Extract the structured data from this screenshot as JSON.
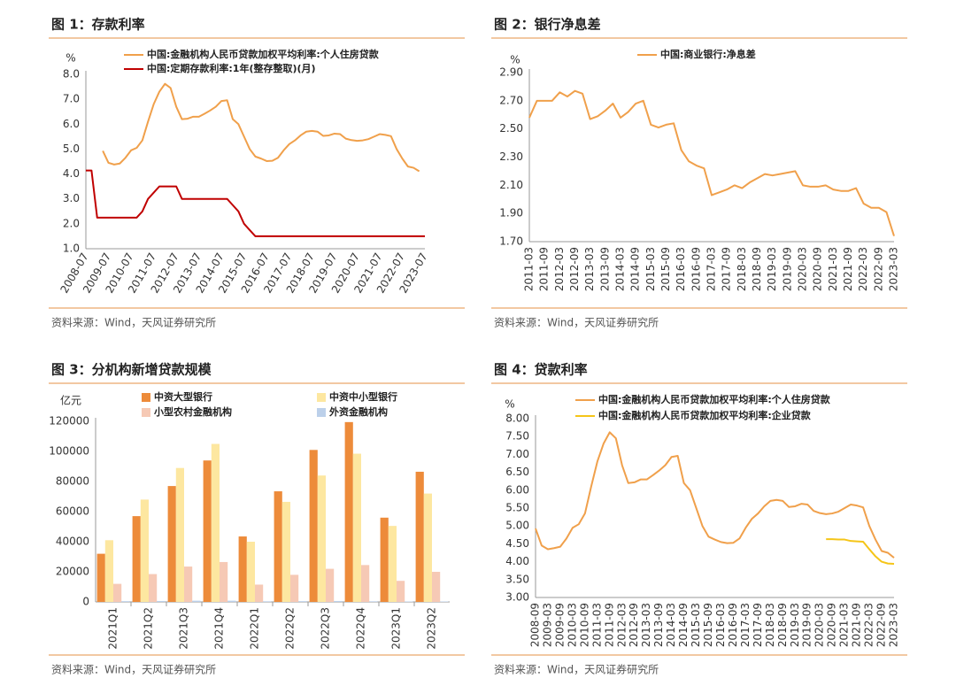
{
  "chart_data": [
    {
      "type": "line",
      "title": "图 1：存款利率",
      "source": "资料来源：Wind，天风证券研究所",
      "ylabel": "%",
      "categories": [
        "2008-07",
        null,
        null,
        null,
        "2009-07",
        null,
        null,
        null,
        "2010-07",
        null,
        null,
        null,
        "2011-07",
        null,
        null,
        null,
        "2012-07",
        null,
        null,
        null,
        "2013-07",
        null,
        null,
        null,
        "2014-07",
        null,
        null,
        null,
        "2015-07",
        null,
        null,
        null,
        "2016-07",
        null,
        null,
        null,
        "2017-07",
        null,
        null,
        null,
        "2018-07",
        null,
        null,
        null,
        "2019-07",
        null,
        null,
        null,
        "2020-07",
        null,
        null,
        null,
        "2021-07",
        null,
        null,
        null,
        "2022-07",
        null,
        null,
        null,
        "2023-07"
      ],
      "series": [
        {
          "name": "中国:金融机构人民币贷款加权平均利率:个人住房贷款",
          "color": "#f0a04b",
          "values": [
            null,
            null,
            null,
            4.93,
            4.45,
            4.38,
            4.42,
            4.65,
            4.95,
            5.05,
            5.35,
            6.1,
            6.8,
            7.3,
            7.62,
            7.45,
            6.7,
            6.2,
            6.22,
            6.3,
            6.3,
            6.42,
            6.55,
            6.7,
            6.93,
            6.96,
            6.2,
            6.0,
            5.5,
            5.0,
            4.7,
            4.62,
            4.52,
            4.53,
            4.65,
            4.95,
            5.2,
            5.35,
            5.55,
            5.7,
            5.73,
            5.7,
            5.53,
            5.55,
            5.62,
            5.6,
            5.42,
            5.36,
            5.33,
            5.35,
            5.4,
            5.5,
            5.6,
            5.57,
            5.52,
            5.0,
            4.62,
            4.3,
            4.25,
            4.11,
            null
          ]
        },
        {
          "name": "中国:定期存款利率:1年(整存整取)(月)",
          "color": "#c00000",
          "values": [
            4.14,
            4.14,
            2.25,
            2.25,
            2.25,
            2.25,
            2.25,
            2.25,
            2.25,
            2.25,
            2.5,
            3.0,
            3.25,
            3.5,
            3.5,
            3.5,
            3.5,
            3.0,
            3.0,
            3.0,
            3.0,
            3.0,
            3.0,
            3.0,
            3.0,
            3.0,
            2.75,
            2.5,
            2.0,
            1.75,
            1.5,
            1.5,
            1.5,
            1.5,
            1.5,
            1.5,
            1.5,
            1.5,
            1.5,
            1.5,
            1.5,
            1.5,
            1.5,
            1.5,
            1.5,
            1.5,
            1.5,
            1.5,
            1.5,
            1.5,
            1.5,
            1.5,
            1.5,
            1.5,
            1.5,
            1.5,
            1.5,
            1.5,
            1.5,
            1.5,
            1.5
          ]
        }
      ],
      "ylim": [
        1.0,
        8.0
      ],
      "yticks": [
        {
          "value": 1,
          "label": "1.0"
        },
        {
          "value": 2,
          "label": "2.0"
        },
        {
          "value": 3,
          "label": "3.0"
        },
        {
          "value": 4,
          "label": "4.0"
        },
        {
          "value": 5,
          "label": "5.0"
        },
        {
          "value": 6,
          "label": "6.0"
        },
        {
          "value": 7,
          "label": "7.0"
        },
        {
          "value": 8,
          "label": "8.0"
        }
      ]
    },
    {
      "type": "line",
      "title": "图 2：银行净息差",
      "source": "资料来源：Wind，天风证券研究所",
      "ylabel": "%",
      "categories": [
        "2011-03",
        null,
        "2011-09",
        null,
        "2012-03",
        null,
        "2012-09",
        null,
        "2013-03",
        null,
        "2013-09",
        null,
        "2014-03",
        null,
        "2014-09",
        null,
        "2015-03",
        null,
        "2015-09",
        null,
        "2016-03",
        null,
        "2016-09",
        null,
        "2017-03",
        null,
        "2017-09",
        null,
        "2018-03",
        null,
        "2018-09",
        null,
        "2019-03",
        null,
        "2019-09",
        null,
        "2020-03",
        null,
        "2020-09",
        null,
        "2021-03",
        null,
        "2021-09",
        null,
        "2022-03",
        null,
        "2022-09",
        null,
        "2023-03"
      ],
      "series": [
        {
          "name": "中国:商业银行:净息差",
          "color": "#f0a04b",
          "values": [
            2.58,
            2.7,
            2.7,
            2.7,
            2.76,
            2.73,
            2.77,
            2.75,
            2.57,
            2.59,
            2.63,
            2.68,
            2.58,
            2.62,
            2.68,
            2.7,
            2.53,
            2.51,
            2.53,
            2.54,
            2.35,
            2.27,
            2.24,
            2.22,
            2.03,
            2.05,
            2.07,
            2.1,
            2.08,
            2.12,
            2.15,
            2.18,
            2.17,
            2.18,
            2.19,
            2.2,
            2.1,
            2.09,
            2.09,
            2.1,
            2.07,
            2.06,
            2.06,
            2.08,
            1.97,
            1.94,
            1.94,
            1.91,
            1.74
          ]
        }
      ],
      "ylim": [
        1.7,
        2.9
      ],
      "yticks": [
        {
          "value": 1.7,
          "label": "1.70"
        },
        {
          "value": 1.9,
          "label": "1.90"
        },
        {
          "value": 2.1,
          "label": "2.10"
        },
        {
          "value": 2.3,
          "label": "2.30"
        },
        {
          "value": 2.5,
          "label": "2.50"
        },
        {
          "value": 2.7,
          "label": "2.70"
        },
        {
          "value": 2.9,
          "label": "2.90"
        }
      ]
    },
    {
      "type": "bar",
      "title": "图 3：分机构新增贷款规模",
      "source": "资料来源：Wind，天风证券研究所",
      "ylabel": "亿元",
      "categories": [
        "2021Q1",
        "2021Q2",
        "2021Q3",
        "2021Q4",
        "2022Q1",
        "2022Q2",
        "2022Q3",
        "2022Q4",
        "2023Q1",
        "2023Q2"
      ],
      "series": [
        {
          "name": "中资大型银行",
          "color": "#ed8b3a",
          "values": [
            32000,
            57000,
            77000,
            94000,
            43500,
            73500,
            101000,
            119500,
            56000,
            86500
          ]
        },
        {
          "name": "中资中小型银行",
          "color": "#fde7a0",
          "values": [
            41000,
            68000,
            89000,
            105000,
            40000,
            66500,
            84000,
            98500,
            50500,
            72000
          ]
        },
        {
          "name": "小型农村金融机构",
          "color": "#f6c9b5",
          "values": [
            12000,
            18500,
            23500,
            26500,
            11500,
            18000,
            22000,
            24500,
            14000,
            20000
          ]
        },
        {
          "name": "外资金融机构",
          "color": "#bcd0ea",
          "values": [
            500,
            600,
            800,
            800,
            400,
            500,
            600,
            400,
            300,
            300
          ]
        }
      ],
      "ylim": [
        0,
        120000
      ],
      "yticks": [
        0,
        20000,
        40000,
        60000,
        80000,
        100000,
        120000
      ]
    },
    {
      "type": "line",
      "title": "图 4：贷款利率",
      "source": "资料来源：Wind，天风证券研究所",
      "ylabel": "%",
      "categories": [
        "2008-09",
        null,
        "2009-03",
        null,
        "2009-09",
        null,
        "2010-03",
        null,
        "2010-09",
        null,
        "2011-03",
        null,
        "2011-09",
        null,
        "2012-03",
        null,
        "2012-09",
        null,
        "2013-03",
        null,
        "2013-09",
        null,
        "2014-03",
        null,
        "2014-09",
        null,
        "2015-03",
        null,
        "2015-09",
        null,
        "2016-03",
        null,
        "2016-09",
        null,
        "2017-03",
        null,
        "2017-09",
        null,
        "2018-03",
        null,
        "2018-09",
        null,
        "2019-03",
        null,
        "2019-09",
        null,
        "2020-03",
        null,
        "2020-09",
        null,
        "2021-03",
        null,
        "2021-09",
        null,
        "2022-03",
        null,
        "2022-09",
        null,
        "2023-03"
      ],
      "series": [
        {
          "name": "中国:金融机构人民币贷款加权平均利率:个人住房贷款",
          "color": "#f0a04b",
          "values": [
            4.93,
            4.45,
            4.35,
            4.38,
            4.42,
            4.65,
            4.95,
            5.05,
            5.35,
            6.1,
            6.8,
            7.3,
            7.62,
            7.45,
            6.7,
            6.2,
            6.22,
            6.3,
            6.3,
            6.42,
            6.55,
            6.7,
            6.93,
            6.96,
            6.2,
            6.0,
            5.5,
            5.0,
            4.7,
            4.62,
            4.55,
            4.52,
            4.53,
            4.65,
            4.95,
            5.2,
            5.35,
            5.55,
            5.7,
            5.73,
            5.7,
            5.53,
            5.55,
            5.62,
            5.6,
            5.42,
            5.36,
            5.33,
            5.35,
            5.4,
            5.5,
            5.6,
            5.57,
            5.52,
            5.0,
            4.62,
            4.3,
            4.25,
            4.11
          ]
        },
        {
          "name": "中国:金融机构人民币贷款加权平均利率:企业贷款",
          "color": "#f5c518",
          "values": [
            null,
            null,
            null,
            null,
            null,
            null,
            null,
            null,
            null,
            null,
            null,
            null,
            null,
            null,
            null,
            null,
            null,
            null,
            null,
            null,
            null,
            null,
            null,
            null,
            null,
            null,
            null,
            null,
            null,
            null,
            null,
            null,
            null,
            null,
            null,
            null,
            null,
            null,
            null,
            null,
            null,
            null,
            null,
            null,
            null,
            null,
            null,
            4.63,
            4.63,
            4.62,
            4.62,
            4.58,
            4.57,
            4.56,
            4.35,
            4.15,
            4.0,
            3.95,
            3.94
          ]
        }
      ],
      "ylim": [
        3.0,
        8.0
      ],
      "yticks": [
        {
          "value": 3,
          "label": "3.00"
        },
        {
          "value": 3.5,
          "label": "3.50"
        },
        {
          "value": 4,
          "label": "4.00"
        },
        {
          "value": 4.5,
          "label": "4.50"
        },
        {
          "value": 5,
          "label": "5.00"
        },
        {
          "value": 5.5,
          "label": "5.50"
        },
        {
          "value": 6,
          "label": "6.00"
        },
        {
          "value": 6.5,
          "label": "6.50"
        },
        {
          "value": 7,
          "label": "7.00"
        },
        {
          "value": 7.5,
          "label": "7.50"
        },
        {
          "value": 8,
          "label": "8.00"
        }
      ]
    }
  ]
}
